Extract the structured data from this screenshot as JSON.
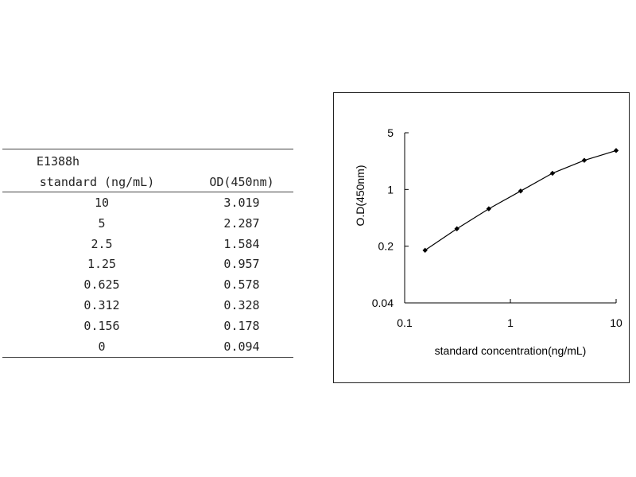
{
  "table": {
    "header_line1": "E1388h",
    "header_col1": "standard (ng/mL)",
    "header_col2": "OD(450nm)",
    "rows": [
      {
        "standard": "10",
        "od": "3.019"
      },
      {
        "standard": "5",
        "od": "2.287"
      },
      {
        "standard": "2.5",
        "od": "1.584"
      },
      {
        "standard": "1.25",
        "od": "0.957"
      },
      {
        "standard": "0.625",
        "od": "0.578"
      },
      {
        "standard": "0.312",
        "od": "0.328"
      },
      {
        "standard": "0.156",
        "od": "0.178"
      },
      {
        "standard": "0",
        "od": "0.094"
      }
    ]
  },
  "chart_data": {
    "type": "line",
    "title": "",
    "xlabel": "standard concentration(ng/mL)",
    "ylabel": "O.D(450nm)",
    "x_scale": "log",
    "y_scale": "log",
    "xlim": [
      0.1,
      10
    ],
    "ylim": [
      0.04,
      5
    ],
    "x_ticks": [
      "0.1",
      "1",
      "10"
    ],
    "y_ticks": [
      "0.04",
      "0.2",
      "1",
      "5"
    ],
    "grid": false,
    "legend": "none",
    "series": [
      {
        "x": [
          0.156,
          0.312,
          0.625,
          1.25,
          2.5,
          5,
          10
        ],
        "y": [
          0.178,
          0.328,
          0.578,
          0.957,
          1.584,
          2.287,
          3.019
        ]
      }
    ],
    "line_color": "#000000",
    "marker": "diamond"
  }
}
